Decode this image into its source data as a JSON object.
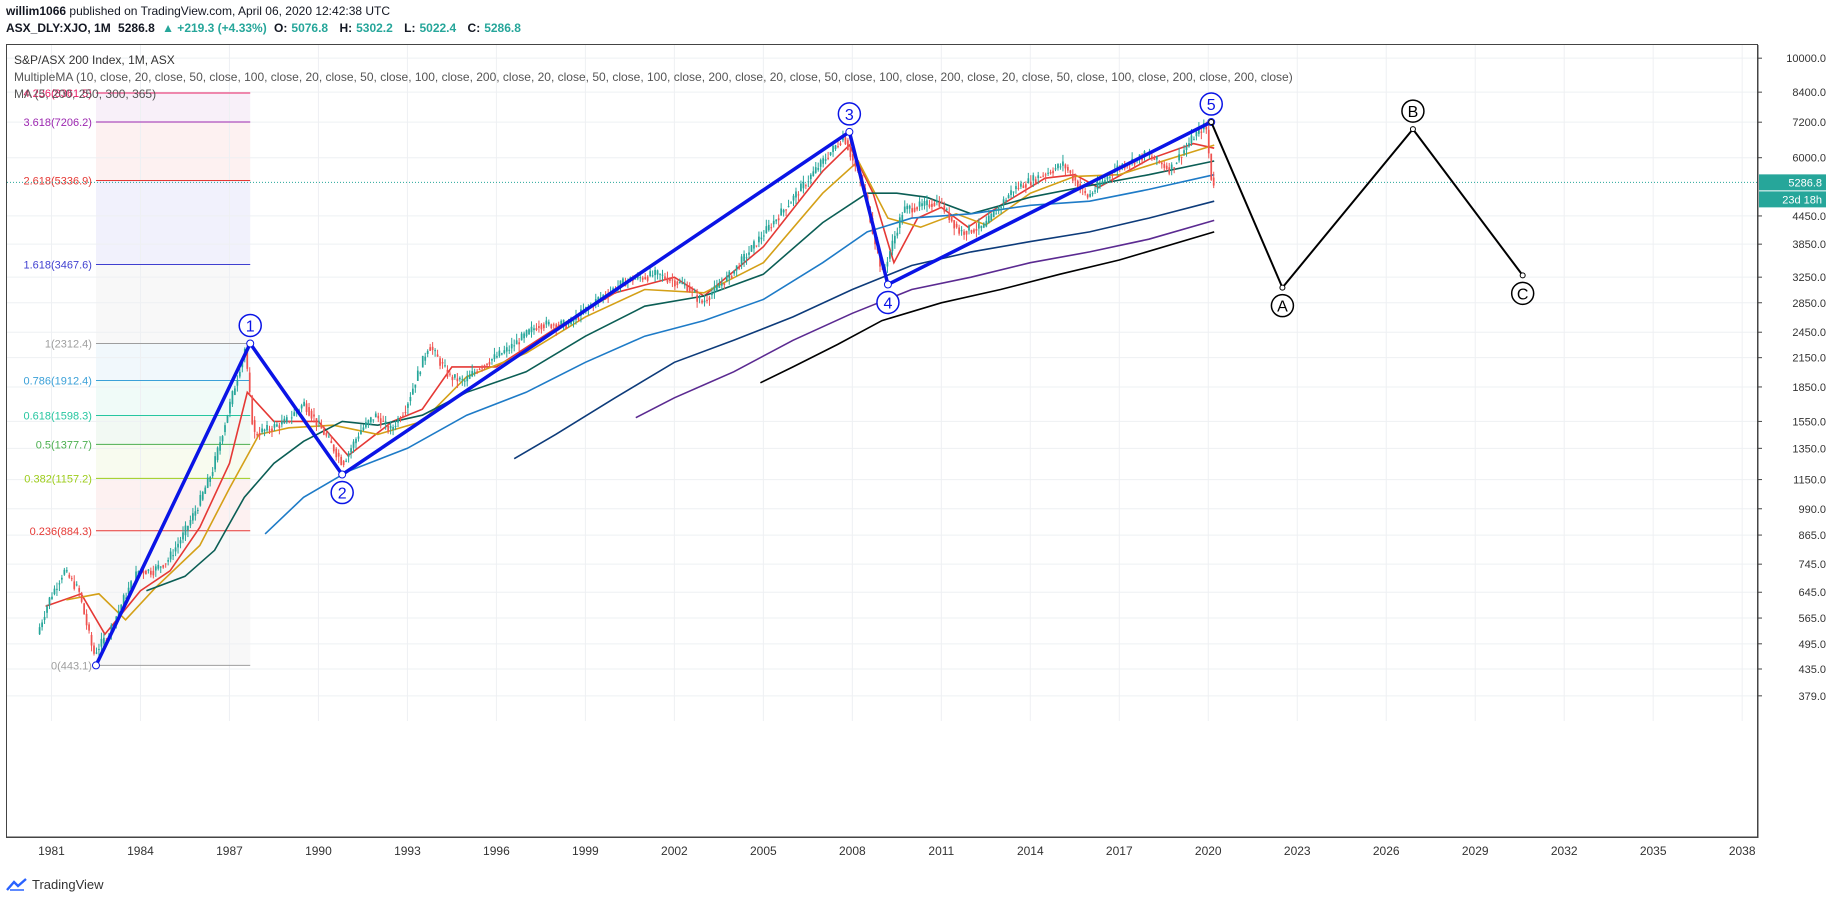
{
  "header": {
    "user": "willim1066",
    "published": "published on TradingView.com, April 06, 2020 12:42:38 UTC",
    "symbol": "ASX_DLY:XJO, 1M",
    "last": "5286.8",
    "change": "▲ +219.3 (+4.33%)",
    "open_label": "O:",
    "open": "5076.8",
    "high_label": "H:",
    "high": "5302.2",
    "low_label": "L:",
    "low": "5022.4",
    "close_label": "C:",
    "close": "5286.8"
  },
  "legend": {
    "title": "S&P/ASX 200 Index, 1M, ASX",
    "multi_ma": "MultipleMA (10, close, 20, close, 50, close, 100, close, 20, close, 50, close, 100, close, 200, close, 20, close, 50, close, 100, close, 200, close, 20, close, 50, close, 100, close, 200, close, 20, close, 50, close, 100, close, 200, close, 200, close)",
    "ma": "MA (5, 200, 250, 300, 365)"
  },
  "footer": {
    "brand": "TradingView"
  },
  "colors": {
    "wave": "#0a14e6",
    "abc": "#000000",
    "up_candle": "#26a69a",
    "down_candle": "#ef5350",
    "price_tag": "#26a69a",
    "ma10": "#e53935",
    "ma20": "#d4a017",
    "ma50": "#0b5e55",
    "ma100": "#1e7bc7",
    "ma200": "#0d3b7a",
    "ma250": "#5b2a91",
    "ma300": "#000000"
  },
  "chart_data": {
    "type": "line",
    "y_scale": "log",
    "ylim": [
      340,
      10700
    ],
    "xlim": [
      1979.5,
      2038.5
    ],
    "y_ticks": [
      "10000.0",
      "8400.0",
      "7200.0",
      "6000.0",
      "5286.8",
      "4450.0",
      "3850.0",
      "3250.0",
      "2850.0",
      "2450.0",
      "2150.0",
      "1850.0",
      "1550.0",
      "1350.0",
      "1150.0",
      "990.0",
      "865.0",
      "745.0",
      "645.0",
      "565.0",
      "495.0",
      "435.0",
      "379.0"
    ],
    "x_ticks": [
      "1981",
      "1984",
      "1987",
      "1990",
      "1993",
      "1996",
      "1999",
      "2002",
      "2005",
      "2008",
      "2011",
      "2014",
      "2017",
      "2020",
      "2023",
      "2026",
      "2029",
      "2032",
      "2035",
      "2038"
    ],
    "last_price": {
      "value": 5286.8,
      "label": "5286.8",
      "countdown": "23d 18h"
    },
    "fibonacci": {
      "levels": [
        {
          "label": "4.236(8361.5)",
          "value": 8361.5,
          "color": "#e91e63"
        },
        {
          "label": "3.618(7206.2)",
          "value": 7206.2,
          "color": "#9c27b0"
        },
        {
          "label": "2.618(5336.9)",
          "value": 5336.9,
          "color": "#e53935"
        },
        {
          "label": "1.618(3467.6)",
          "value": 3467.6,
          "color": "#3f3fd0"
        },
        {
          "label": "1(2312.4)",
          "value": 2312.4,
          "color": "#9e9e9e"
        },
        {
          "label": "0.786(1912.4)",
          "value": 1912.4,
          "color": "#3aa0d8"
        },
        {
          "label": "0.618(1598.3)",
          "value": 1598.3,
          "color": "#26c6a0"
        },
        {
          "label": "0.5(1377.7)",
          "value": 1377.7,
          "color": "#4caf50"
        },
        {
          "label": "0.382(1157.2)",
          "value": 1157.2,
          "color": "#9ccc1a"
        },
        {
          "label": "0.236(884.3)",
          "value": 884.3,
          "color": "#e53935"
        },
        {
          "label": "0(443.1)",
          "value": 443.1,
          "color": "#9e9e9e"
        }
      ],
      "x_start": 1982.5,
      "x_end": 1987.7
    },
    "elliott_wave": [
      {
        "label": "",
        "x": 1982.5,
        "y": 443.1
      },
      {
        "label": "1",
        "x": 1987.7,
        "y": 2312.4
      },
      {
        "label": "2",
        "x": 1990.8,
        "y": 1180
      },
      {
        "label": "3",
        "x": 2007.9,
        "y": 6850
      },
      {
        "label": "4",
        "x": 2009.2,
        "y": 3130
      },
      {
        "label": "5",
        "x": 2020.1,
        "y": 7206
      }
    ],
    "abc_projection": [
      {
        "label": "",
        "x": 2020.1,
        "y": 7206
      },
      {
        "label": "A",
        "x": 2022.5,
        "y": 3080
      },
      {
        "label": "B",
        "x": 2026.9,
        "y": 6950
      },
      {
        "label": "C",
        "x": 2030.6,
        "y": 3280
      }
    ],
    "price": [
      {
        "x": 1980.6,
        "y": 520
      },
      {
        "x": 1981.0,
        "y": 620
      },
      {
        "x": 1981.5,
        "y": 720
      },
      {
        "x": 1982.0,
        "y": 650
      },
      {
        "x": 1982.5,
        "y": 470
      },
      {
        "x": 1983.0,
        "y": 520
      },
      {
        "x": 1983.5,
        "y": 620
      },
      {
        "x": 1984.0,
        "y": 720
      },
      {
        "x": 1984.5,
        "y": 720
      },
      {
        "x": 1985.0,
        "y": 760
      },
      {
        "x": 1985.5,
        "y": 860
      },
      {
        "x": 1986.0,
        "y": 1000
      },
      {
        "x": 1986.5,
        "y": 1200
      },
      {
        "x": 1987.0,
        "y": 1600
      },
      {
        "x": 1987.6,
        "y": 2250
      },
      {
        "x": 1987.9,
        "y": 1450
      },
      {
        "x": 1988.5,
        "y": 1500
      },
      {
        "x": 1989.0,
        "y": 1550
      },
      {
        "x": 1989.6,
        "y": 1700
      },
      {
        "x": 1990.3,
        "y": 1450
      },
      {
        "x": 1990.9,
        "y": 1250
      },
      {
        "x": 1991.5,
        "y": 1480
      },
      {
        "x": 1992.0,
        "y": 1600
      },
      {
        "x": 1992.5,
        "y": 1480
      },
      {
        "x": 1993.0,
        "y": 1650
      },
      {
        "x": 1993.8,
        "y": 2300
      },
      {
        "x": 1994.5,
        "y": 1950
      },
      {
        "x": 1995.0,
        "y": 1900
      },
      {
        "x": 1995.5,
        "y": 2050
      },
      {
        "x": 1996.5,
        "y": 2250
      },
      {
        "x": 1997.5,
        "y": 2550
      },
      {
        "x": 1998.5,
        "y": 2550
      },
      {
        "x": 1999.5,
        "y": 2900
      },
      {
        "x": 2000.5,
        "y": 3200
      },
      {
        "x": 2001.5,
        "y": 3300
      },
      {
        "x": 2002.5,
        "y": 3100
      },
      {
        "x": 2003.0,
        "y": 2850
      },
      {
        "x": 2004.0,
        "y": 3300
      },
      {
        "x": 2005.0,
        "y": 4000
      },
      {
        "x": 2006.0,
        "y": 4800
      },
      {
        "x": 2007.0,
        "y": 5800
      },
      {
        "x": 2007.8,
        "y": 6700
      },
      {
        "x": 2008.5,
        "y": 5000
      },
      {
        "x": 2009.1,
        "y": 3300
      },
      {
        "x": 2009.8,
        "y": 4600
      },
      {
        "x": 2010.5,
        "y": 4700
      },
      {
        "x": 2011.0,
        "y": 4800
      },
      {
        "x": 2011.7,
        "y": 4100
      },
      {
        "x": 2012.5,
        "y": 4200
      },
      {
        "x": 2013.5,
        "y": 5100
      },
      {
        "x": 2014.5,
        "y": 5500
      },
      {
        "x": 2015.2,
        "y": 5800
      },
      {
        "x": 2016.0,
        "y": 4900
      },
      {
        "x": 2017.0,
        "y": 5700
      },
      {
        "x": 2018.0,
        "y": 6100
      },
      {
        "x": 2018.8,
        "y": 5650
      },
      {
        "x": 2019.6,
        "y": 6700
      },
      {
        "x": 2020.0,
        "y": 7100
      },
      {
        "x": 2020.2,
        "y": 5286.8
      }
    ],
    "series": [
      {
        "name": "",
        "key": "ma10",
        "points": [
          [
            1980.8,
            600
          ],
          [
            1982.0,
            640
          ],
          [
            1982.8,
            520
          ],
          [
            1984.0,
            650
          ],
          [
            1985.0,
            720
          ],
          [
            1986.0,
            900
          ],
          [
            1987.0,
            1250
          ],
          [
            1987.6,
            1800
          ],
          [
            1988.5,
            1550
          ],
          [
            1990.0,
            1550
          ],
          [
            1991.0,
            1300
          ],
          [
            1992.5,
            1550
          ],
          [
            1993.5,
            1650
          ],
          [
            1994.5,
            2050
          ],
          [
            1996,
            2050
          ],
          [
            1998,
            2500
          ],
          [
            2000,
            3000
          ],
          [
            2002,
            3250
          ],
          [
            2003,
            2950
          ],
          [
            2005,
            3800
          ],
          [
            2007,
            5600
          ],
          [
            2007.9,
            6400
          ],
          [
            2008.7,
            5000
          ],
          [
            2009.4,
            3500
          ],
          [
            2010.2,
            4400
          ],
          [
            2011,
            4650
          ],
          [
            2011.9,
            4200
          ],
          [
            2013,
            4700
          ],
          [
            2014.5,
            5400
          ],
          [
            2015.5,
            5500
          ],
          [
            2016.3,
            5150
          ],
          [
            2018,
            5950
          ],
          [
            2019.5,
            6450
          ],
          [
            2020.2,
            6300
          ]
        ]
      },
      {
        "name": "",
        "key": "ma20",
        "points": [
          [
            1981.5,
            620
          ],
          [
            1982.6,
            640
          ],
          [
            1983.5,
            560
          ],
          [
            1984.5,
            660
          ],
          [
            1986,
            820
          ],
          [
            1987,
            1100
          ],
          [
            1988,
            1450
          ],
          [
            1989,
            1500
          ],
          [
            1990.5,
            1520
          ],
          [
            1992,
            1450
          ],
          [
            1993.5,
            1550
          ],
          [
            1995,
            1950
          ],
          [
            1997,
            2200
          ],
          [
            1999,
            2650
          ],
          [
            2001,
            3050
          ],
          [
            2003,
            3000
          ],
          [
            2005,
            3500
          ],
          [
            2007,
            5000
          ],
          [
            2008.2,
            5900
          ],
          [
            2009.2,
            4400
          ],
          [
            2010.3,
            4200
          ],
          [
            2011.5,
            4500
          ],
          [
            2012.5,
            4250
          ],
          [
            2014,
            5000
          ],
          [
            2015.5,
            5450
          ],
          [
            2017,
            5500
          ],
          [
            2019,
            6050
          ],
          [
            2020.2,
            6400
          ]
        ]
      },
      {
        "name": "",
        "key": "ma50",
        "points": [
          [
            1984.2,
            650
          ],
          [
            1985.5,
            700
          ],
          [
            1986.5,
            800
          ],
          [
            1987.5,
            1050
          ],
          [
            1988.5,
            1250
          ],
          [
            1989.5,
            1400
          ],
          [
            1990.8,
            1550
          ],
          [
            1992,
            1520
          ],
          [
            1993.5,
            1600
          ],
          [
            1995,
            1800
          ],
          [
            1997,
            2000
          ],
          [
            1999,
            2400
          ],
          [
            2001,
            2800
          ],
          [
            2003,
            2950
          ],
          [
            2005,
            3300
          ],
          [
            2007,
            4300
          ],
          [
            2008.5,
            5000
          ],
          [
            2009.5,
            5000
          ],
          [
            2010.5,
            4900
          ],
          [
            2012,
            4500
          ],
          [
            2014,
            4900
          ],
          [
            2016,
            5200
          ],
          [
            2018,
            5500
          ],
          [
            2020.2,
            5900
          ]
        ]
      },
      {
        "name": "",
        "key": "ma100",
        "points": [
          [
            1988.2,
            870
          ],
          [
            1989.5,
            1050
          ],
          [
            1991,
            1200
          ],
          [
            1993,
            1350
          ],
          [
            1995,
            1600
          ],
          [
            1997,
            1800
          ],
          [
            1999,
            2100
          ],
          [
            2001,
            2400
          ],
          [
            2003,
            2600
          ],
          [
            2005,
            2900
          ],
          [
            2007,
            3500
          ],
          [
            2008.5,
            4100
          ],
          [
            2010,
            4400
          ],
          [
            2012,
            4500
          ],
          [
            2014,
            4700
          ],
          [
            2016,
            4800
          ],
          [
            2018,
            5100
          ],
          [
            2020.2,
            5500
          ]
        ]
      },
      {
        "name": "",
        "key": "ma200",
        "points": [
          [
            1996.6,
            1280
          ],
          [
            1998,
            1450
          ],
          [
            2000,
            1750
          ],
          [
            2002,
            2100
          ],
          [
            2004,
            2350
          ],
          [
            2006,
            2650
          ],
          [
            2008,
            3050
          ],
          [
            2010,
            3450
          ],
          [
            2012,
            3700
          ],
          [
            2014,
            3900
          ],
          [
            2016,
            4100
          ],
          [
            2018,
            4400
          ],
          [
            2020.2,
            4800
          ]
        ]
      },
      {
        "name": "",
        "key": "ma250",
        "points": [
          [
            2000.7,
            1580
          ],
          [
            2002,
            1750
          ],
          [
            2004,
            2000
          ],
          [
            2006,
            2350
          ],
          [
            2008,
            2700
          ],
          [
            2010,
            3050
          ],
          [
            2012,
            3250
          ],
          [
            2014,
            3500
          ],
          [
            2016,
            3700
          ],
          [
            2018,
            3950
          ],
          [
            2020.2,
            4350
          ]
        ]
      },
      {
        "name": "",
        "key": "ma300",
        "points": [
          [
            2004.9,
            1890
          ],
          [
            2006,
            2050
          ],
          [
            2007.5,
            2300
          ],
          [
            2009,
            2600
          ],
          [
            2011,
            2850
          ],
          [
            2013,
            3050
          ],
          [
            2015,
            3300
          ],
          [
            2017,
            3550
          ],
          [
            2020.2,
            4100
          ]
        ]
      }
    ]
  }
}
